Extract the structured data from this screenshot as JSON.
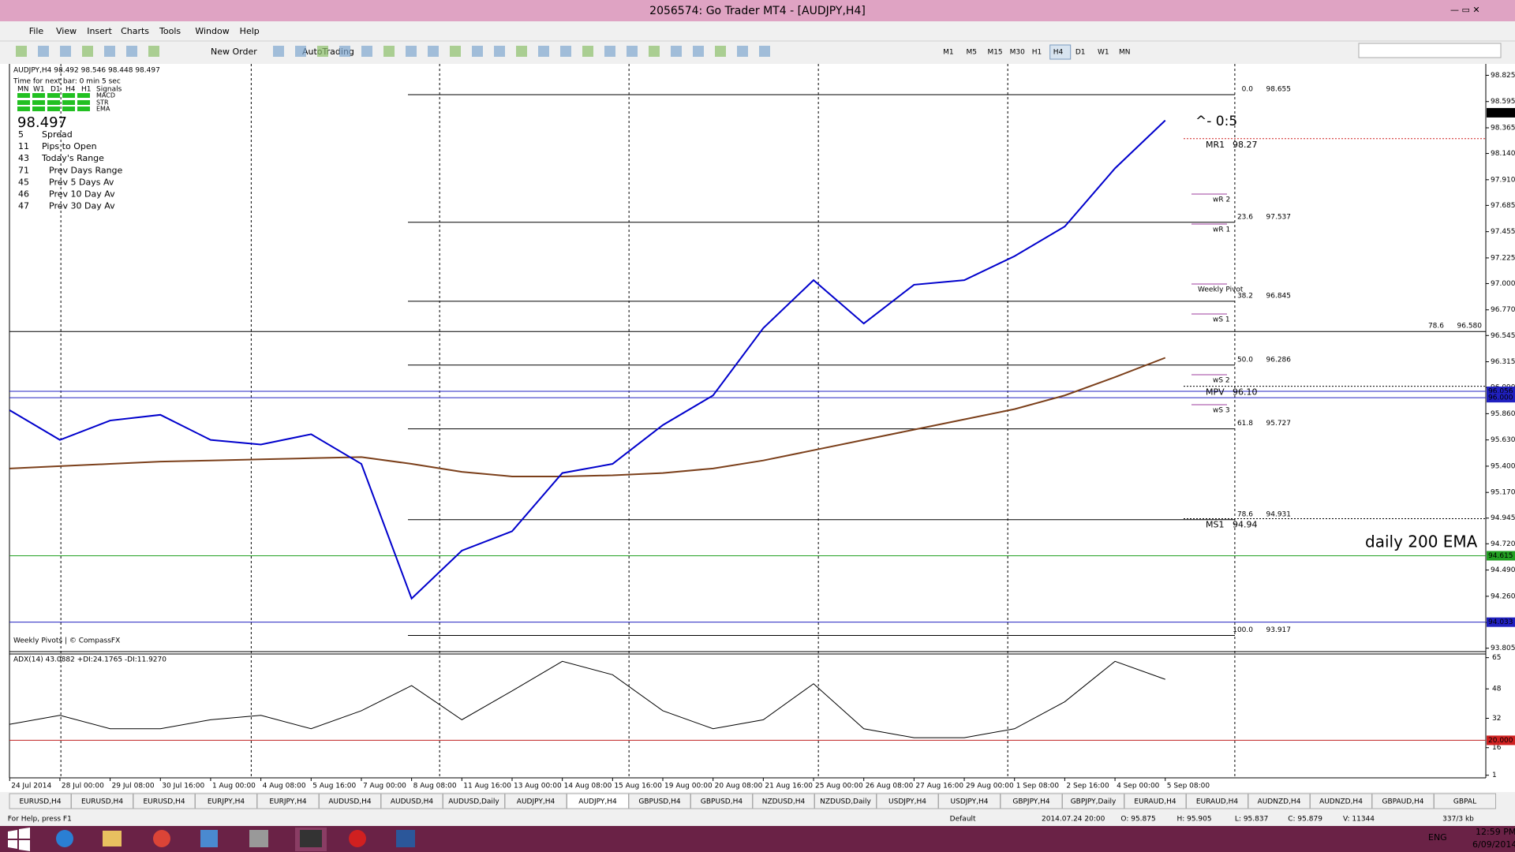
{
  "window": {
    "title": "2056574: Go Trader MT4 - [AUDJPY,H4]"
  },
  "menu": [
    "File",
    "View",
    "Insert",
    "Charts",
    "Tools",
    "Window",
    "Help"
  ],
  "toolbar": {
    "new_order": "New Order",
    "autotrading": "AutoTrading",
    "timeframes": [
      "M1",
      "M5",
      "M15",
      "M30",
      "H1",
      "H4",
      "D1",
      "W1",
      "MN"
    ]
  },
  "info": {
    "header": "AUDJPY,H4  98.492 98.546 98.448 98.497",
    "timer": "Time for next bar: 0 min 5 sec",
    "signal_cols": [
      "MN",
      "W1",
      "D1",
      "H4",
      "H1",
      "Signals"
    ],
    "signal_rows": [
      "MACD",
      "STR",
      "EMA"
    ],
    "price": "98.497",
    "stats": [
      {
        "value": "5",
        "label": "Spread"
      },
      {
        "value": "11",
        "label": "Pips to Open"
      },
      {
        "value": "43",
        "label": "Today's Range"
      },
      {
        "value": "71",
        "label": "Prev Days Range"
      },
      {
        "value": "45",
        "label": "Prev 5 Days Av"
      },
      {
        "value": "46",
        "label": "Prev 10 Day Av"
      },
      {
        "value": "47",
        "label": "Prev 30 Day Av"
      }
    ],
    "footer": "Weekly Pivots | © CompassFX"
  },
  "chart_data": {
    "type": "line",
    "categories": [
      "24 Jul 2014",
      "28 Jul 00:00",
      "29 Jul 08:00",
      "30 Jul 16:00",
      "1 Aug 00:00",
      "4 Aug 08:00",
      "5 Aug 16:00",
      "7 Aug 00:00",
      "8 Aug 08:00",
      "11 Aug 16:00",
      "13 Aug 00:00",
      "14 Aug 08:00",
      "15 Aug 16:00",
      "19 Aug 00:00",
      "20 Aug 08:00",
      "21 Aug 16:00",
      "25 Aug 00:00",
      "26 Aug 08:00",
      "27 Aug 16:00",
      "29 Aug 00:00",
      "1 Sep 08:00",
      "2 Sep 16:00",
      "4 Sep 00:00",
      "5 Sep 08:00"
    ],
    "close": {
      "color": "#0000cc",
      "values": [
        95.89,
        95.63,
        95.8,
        95.85,
        95.63,
        95.59,
        95.68,
        95.42,
        94.24,
        94.66,
        94.83,
        95.34,
        95.42,
        95.76,
        96.02,
        96.61,
        97.03,
        96.65,
        96.99,
        97.03,
        97.24,
        97.5,
        98.01,
        98.43
      ]
    },
    "ema200": {
      "color": "#7b3f1a",
      "values": [
        95.38,
        95.4,
        95.42,
        95.44,
        95.45,
        95.46,
        95.47,
        95.48,
        95.42,
        95.35,
        95.31,
        95.31,
        95.32,
        95.34,
        95.38,
        95.45,
        95.54,
        95.63,
        95.72,
        95.81,
        95.9,
        96.02,
        96.18,
        96.35
      ]
    },
    "ylim": [
      93.775,
      98.925
    ],
    "yticks": [
      98.825,
      98.595,
      98.365,
      {
        "value": 98.14,
        "label": "98.140"
      },
      {
        "value": 97.91,
        "label": "97.910"
      },
      97.685,
      97.455,
      97.225,
      {
        "value": 97,
        "label": "97.000"
      },
      {
        "value": 96.77,
        "label": "96.770"
      },
      96.545,
      96.315,
      {
        "value": 96.09,
        "label": "96.090"
      },
      {
        "value": 95.86,
        "label": "95.860"
      },
      {
        "value": 95.63,
        "label": "95.630"
      },
      {
        "value": 95.4,
        "label": "95.400"
      },
      {
        "value": 95.17,
        "label": "95.170"
      },
      94.945,
      {
        "value": 94.72,
        "label": "94.720"
      },
      {
        "value": 94.49,
        "label": "94.490"
      },
      {
        "value": 94.26,
        "label": "94.260"
      },
      {
        "value": 94.03,
        "label": "94.030"
      },
      93.805
    ],
    "fib": [
      {
        "level": "0.0",
        "price": 98.655
      },
      {
        "level": "23.6",
        "price": 97.537
      },
      {
        "level": "38.2",
        "price": 96.845
      },
      {
        "level": "50.0",
        "price": 96.286
      },
      {
        "level": "61.8",
        "price": 95.727
      },
      {
        "level": "78.6",
        "price": 94.931
      },
      {
        "level": "100.0",
        "price": 93.917
      },
      {
        "level": "78.6",
        "price": {
          "value": 96.58,
          "label": "96.580"
        },
        "full": true
      }
    ],
    "pivots": [
      {
        "label": "MR1",
        "price": 98.27
      },
      {
        "label": "MPV",
        "price": {
          "value": 96.1,
          "label": "96.10"
        }
      },
      {
        "label": "MS1",
        "price": 94.94
      }
    ],
    "weekly_labels": [
      "wR 2",
      "wR 1",
      "Weekly Pivot",
      "wS 1",
      "wS 2",
      "wS 3"
    ],
    "axis_marks": [
      {
        "price": 98.497,
        "bg": "#000000",
        "line": false
      },
      {
        "price": 96.056,
        "bg": "#2020c0",
        "line": true
      },
      {
        "price": {
          "value": 96,
          "label": "96.000"
        },
        "bg": "#2020c0",
        "line": true
      },
      {
        "price": 94.615,
        "bg": "#22a022",
        "line": true
      },
      {
        "price": 94.033,
        "bg": "#2020c0",
        "line": true
      }
    ],
    "annotations": {
      "ema_note": "daily 200 EMA",
      "ratio": "^- 0:5"
    },
    "adx": {
      "label": "ADX(14) 43.0882 +DI:24.1765 -DI:11.9270",
      "color": "#000000",
      "values": [
        28.7,
        33.6,
        26.3,
        26.3,
        31.2,
        33.6,
        26.3,
        36.1,
        49.8,
        31.2,
        46.9,
        63,
        55.7,
        36.1,
        26.3,
        31.2,
        50.8,
        26.3,
        21.4,
        21.4,
        26.3,
        41,
        63,
        53.2
      ],
      "ylim": [
        0,
        67
      ],
      "yticks": [
        65,
        48,
        32,
        16,
        1
      ],
      "level": {
        "value": 20,
        "label": "20.000"
      }
    }
  },
  "tabs": [
    "EURUSD,H4",
    "EURUSD,H4",
    "EURUSD,H4",
    "EURJPY,H4",
    "EURJPY,H4",
    "AUDUSD,H4",
    "AUDUSD,H4",
    "AUDUSD,Daily",
    "AUDJPY,H4",
    "AUDJPY,H4",
    "GBPUSD,H4",
    "GBPUSD,H4",
    "NZDUSD,H4",
    "NZDUSD,Daily",
    "USDJPY,H4",
    "USDJPY,H4",
    "GBPJPY,H4",
    "GBPJPY,Daily",
    "EURAUD,H4",
    "EURAUD,H4",
    "AUDNZD,H4",
    "AUDNZD,H4",
    "GBPAUD,H4",
    "GBPAL"
  ],
  "status": [
    "For Help, press F1",
    "Default",
    "2014.07.24 20:00",
    "O: 95.875",
    "H: 95.905",
    "L: 95.837",
    "C: 95.879",
    "V: 11344",
    "337/3 kb"
  ],
  "taskbar": {
    "lang": "ENG",
    "time": "12:59 PM",
    "date": "6/09/2014"
  }
}
